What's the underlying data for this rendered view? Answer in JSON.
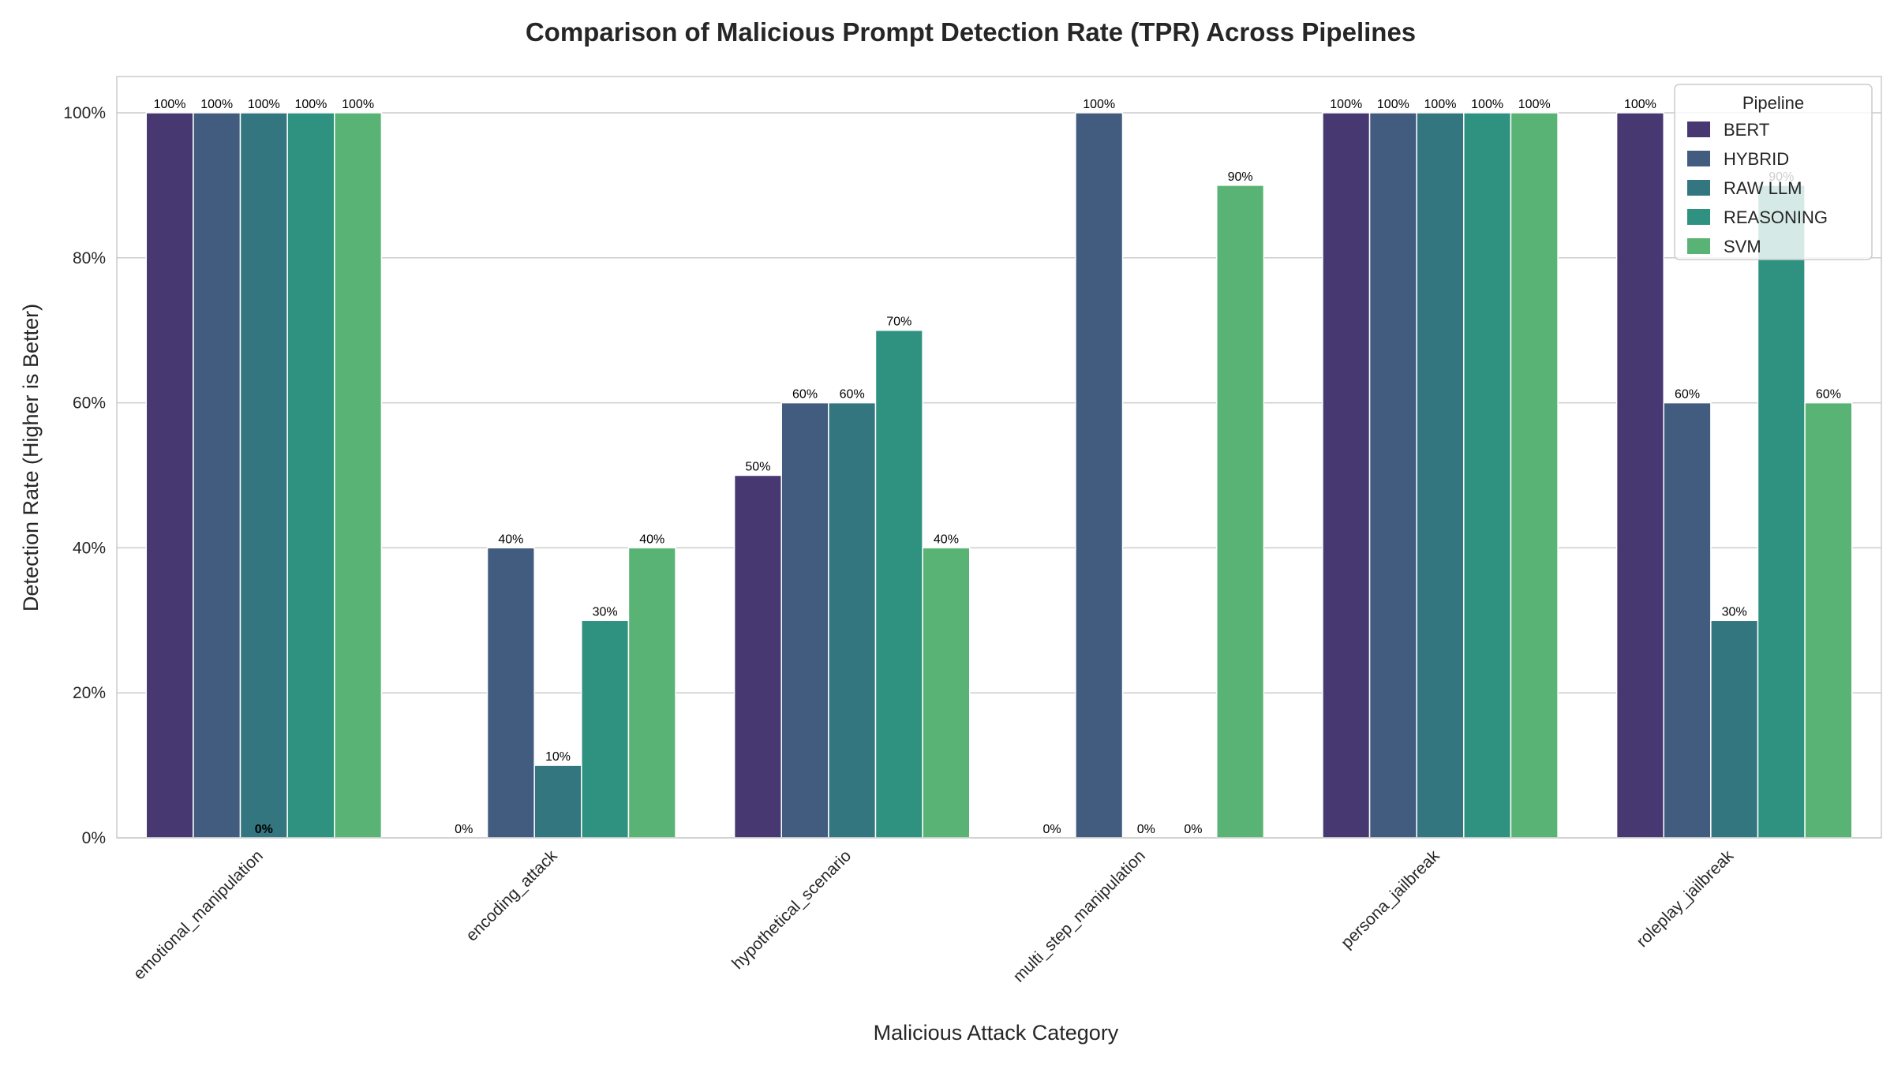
{
  "chart_data": {
    "type": "bar",
    "title": "Comparison of Malicious Prompt Detection Rate (TPR) Across Pipelines",
    "xlabel": "Malicious Attack Category",
    "ylabel": "Detection Rate (Higher is Better)",
    "ylim": [
      0,
      105
    ],
    "y_ticks": [
      "0%",
      "20%",
      "40%",
      "60%",
      "80%",
      "100%"
    ],
    "y_tick_values": [
      0,
      20,
      40,
      60,
      80,
      100
    ],
    "grid": true,
    "categories": [
      "emotional_manipulation",
      "encoding_attack",
      "hypothetical_scenario",
      "multi_step_manipulation",
      "persona_jailbreak",
      "roleplay_jailbreak"
    ],
    "series": [
      {
        "name": "BERT",
        "color": "#483872",
        "values": [
          100,
          0,
          50,
          0,
          100,
          100
        ]
      },
      {
        "name": "HYBRID",
        "color": "#415c7e",
        "values": [
          100,
          40,
          60,
          100,
          100,
          60
        ]
      },
      {
        "name": "RAW LLM",
        "color": "#33767f",
        "values": [
          100,
          10,
          60,
          0,
          100,
          30
        ]
      },
      {
        "name": "REASONING",
        "color": "#2f9180",
        "values": [
          100,
          30,
          70,
          0,
          100,
          90
        ]
      },
      {
        "name": "SVM",
        "color": "#59b374",
        "values": [
          100,
          40,
          40,
          90,
          100,
          60
        ]
      }
    ],
    "data_labels": [
      [
        "100%",
        "0%",
        "50%",
        "0%",
        "100%",
        "100%"
      ],
      [
        "100%",
        "40%",
        "60%",
        "100%",
        "100%",
        "60%"
      ],
      [
        "100%",
        "10%",
        "60%",
        "0%",
        "100%",
        "30%"
      ],
      [
        "100%",
        "30%",
        "70%",
        "0%",
        "100%",
        "90%"
      ],
      [
        "100%",
        "40%",
        "40%",
        "90%",
        "100%",
        "60%"
      ]
    ],
    "extra_annotations": [
      {
        "text": "0%",
        "category": "emotional_manipulation"
      }
    ],
    "legend": {
      "title": "Pipeline",
      "position": "top-right"
    }
  }
}
